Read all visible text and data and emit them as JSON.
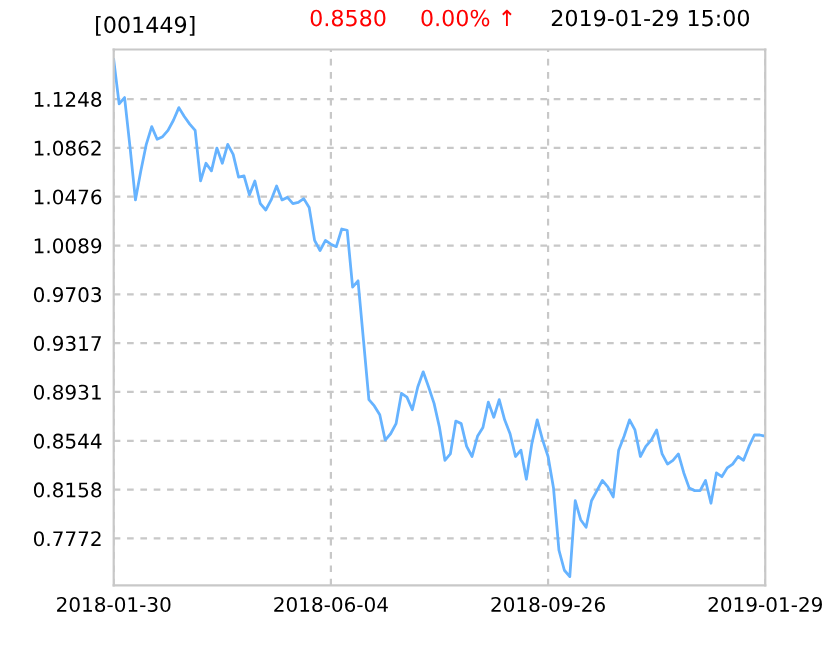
{
  "chart_data": {
    "type": "line",
    "title": "[001449]",
    "annotations": [
      "0.8580",
      "0.00% ↑",
      "2019-01-29 15:00"
    ],
    "categories": [
      "2018-01-30",
      null,
      null,
      null,
      null,
      null,
      null,
      null,
      null,
      null,
      null,
      null,
      null,
      null,
      null,
      null,
      null,
      null,
      null,
      null,
      null,
      null,
      null,
      null,
      null,
      null,
      null,
      null,
      null,
      null,
      null,
      null,
      null,
      null,
      null,
      null,
      null,
      null,
      null,
      null,
      "2018-06-04",
      null,
      null,
      null,
      null,
      null,
      null,
      null,
      null,
      null,
      null,
      null,
      null,
      null,
      null,
      null,
      null,
      null,
      null,
      null,
      null,
      null,
      null,
      null,
      null,
      null,
      null,
      null,
      null,
      null,
      null,
      null,
      null,
      null,
      null,
      null,
      null,
      null,
      null,
      null,
      "2018-09-26",
      null,
      null,
      null,
      null,
      null,
      null,
      null,
      null,
      null,
      null,
      null,
      null,
      null,
      null,
      null,
      null,
      null,
      null,
      null,
      null,
      null,
      null,
      null,
      null,
      null,
      null,
      null,
      null,
      null,
      null,
      null,
      null,
      null,
      null,
      null,
      null,
      null,
      null,
      null,
      "2019-01-29"
    ],
    "series": [
      {
        "color": "#66b3ff",
        "values": [
          1.156,
          1.121,
          1.126,
          1.087,
          1.045,
          1.068,
          1.089,
          1.103,
          1.093,
          1.095,
          1.1,
          1.108,
          1.118,
          1.111,
          1.105,
          1.1,
          1.06,
          1.074,
          1.068,
          1.086,
          1.074,
          1.089,
          1.081,
          1.063,
          1.064,
          1.049,
          1.06,
          1.042,
          1.037,
          1.045,
          1.056,
          1.045,
          1.047,
          1.042,
          1.043,
          1.046,
          1.039,
          1.013,
          1.005,
          1.013,
          1.01,
          1.008,
          1.022,
          1.021,
          0.976,
          0.981,
          0.934,
          0.887,
          0.882,
          0.875,
          0.855,
          0.86,
          0.868,
          0.892,
          0.889,
          0.879,
          0.897,
          0.909,
          0.897,
          0.884,
          0.865,
          0.839,
          0.844,
          0.87,
          0.868,
          0.85,
          0.842,
          0.858,
          0.865,
          0.885,
          0.873,
          0.887,
          0.871,
          0.86,
          0.842,
          0.847,
          0.824,
          0.852,
          0.871,
          0.855,
          0.842,
          0.817,
          0.768,
          0.752,
          0.747,
          0.807,
          0.792,
          0.786,
          0.807,
          0.815,
          0.823,
          0.818,
          0.81,
          0.847,
          0.858,
          0.871,
          0.863,
          0.842,
          0.85,
          0.855,
          0.863,
          0.844,
          0.836,
          0.839,
          0.844,
          0.829,
          0.817,
          0.815,
          0.815,
          0.823,
          0.805,
          0.829,
          0.826,
          0.833,
          0.836,
          0.842,
          0.839,
          0.85,
          0.859,
          0.859,
          0.858
        ]
      }
    ],
    "ylim": [
      0.74,
      1.164
    ],
    "yticks": [
      0.7772,
      0.8158,
      0.8544,
      0.8931,
      0.9317,
      0.9703,
      1.0089,
      1.0476,
      1.0862,
      1.1248
    ],
    "grid": true,
    "line_style": "solid"
  }
}
